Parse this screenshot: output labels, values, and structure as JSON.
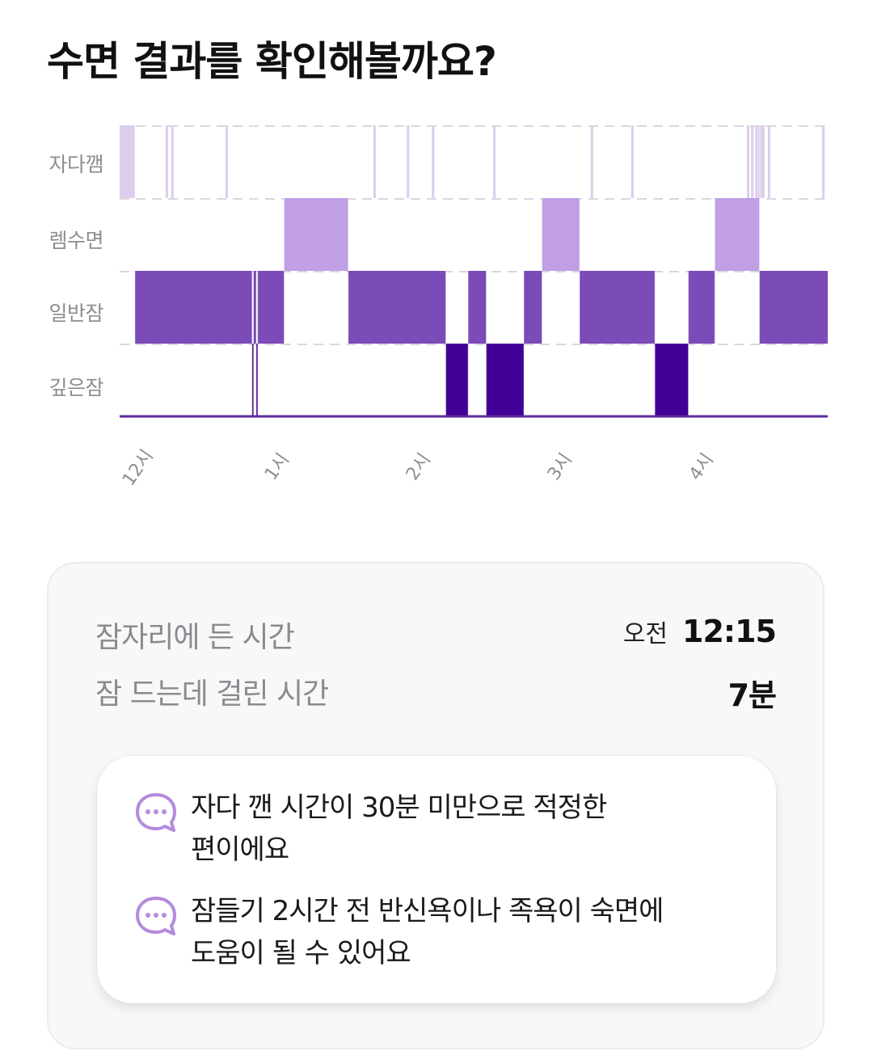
{
  "page": {
    "title": "수면 결과를 확인해볼까요?"
  },
  "chart_data": {
    "type": "timeline",
    "levels": [
      "자다깸",
      "렘수면",
      "일반잠",
      "깊은잠"
    ],
    "x_ticks": [
      "12시",
      "1시",
      "2시",
      "3시",
      "4시"
    ],
    "x_range_hours": [
      0,
      5.08
    ],
    "grid": "dashed-horizontal",
    "colors": {
      "자다깸": "#dccdec",
      "렘수면": "#c09fe5",
      "일반잠": "#7b4bb8",
      "깊은잠": "#430096",
      "line": "#5b2a9a"
    },
    "segments": [
      {
        "stage": "자다깸",
        "start": 0.0,
        "end": 0.11
      },
      {
        "stage": "일반잠",
        "start": 0.11,
        "end": 0.95
      },
      {
        "stage": "깊은잠",
        "start": 0.95,
        "end": 0.96
      },
      {
        "stage": "일반잠",
        "start": 0.96,
        "end": 0.98
      },
      {
        "stage": "깊은잠",
        "start": 0.98,
        "end": 0.99
      },
      {
        "stage": "일반잠",
        "start": 0.99,
        "end": 1.18
      },
      {
        "stage": "렘수면",
        "start": 1.18,
        "end": 1.64
      },
      {
        "stage": "일반잠",
        "start": 1.64,
        "end": 2.34
      },
      {
        "stage": "깊은잠",
        "start": 2.34,
        "end": 2.5
      },
      {
        "stage": "일반잠",
        "start": 2.5,
        "end": 2.63
      },
      {
        "stage": "깊은잠",
        "start": 2.63,
        "end": 2.9
      },
      {
        "stage": "일반잠",
        "start": 2.9,
        "end": 3.03
      },
      {
        "stage": "렘수면",
        "start": 3.03,
        "end": 3.3
      },
      {
        "stage": "일반잠",
        "start": 3.3,
        "end": 3.84
      },
      {
        "stage": "깊은잠",
        "start": 3.84,
        "end": 4.08
      },
      {
        "stage": "일반잠",
        "start": 4.08,
        "end": 4.27
      },
      {
        "stage": "렘수면",
        "start": 4.27,
        "end": 4.59
      },
      {
        "stage": "일반잠",
        "start": 4.59,
        "end": 5.08
      }
    ],
    "awake_marks": [
      0.33,
      0.37,
      0.76,
      1.82,
      2.06,
      2.24,
      2.68,
      3.38,
      3.67,
      4.5,
      4.53,
      4.56,
      4.58,
      4.6,
      4.61,
      4.65,
      5.04
    ]
  },
  "summary": {
    "bedtime_label": "잠자리에 든 시간",
    "bedtime_ampm": "오전",
    "bedtime_value": "12:15",
    "latency_label": "잠 드는데 걸린 시간",
    "latency_value": "7분"
  },
  "tips": [
    {
      "icon": "chat-bubble-icon",
      "line1": "자다 깬 시간이 30분 미만으로 적정한",
      "line2": "편이에요"
    },
    {
      "icon": "chat-bubble-icon",
      "line1": "잠들기 2시간 전 반신욕이나 족욕이 숙면에",
      "line2": "도움이 될 수 있어요"
    }
  ]
}
